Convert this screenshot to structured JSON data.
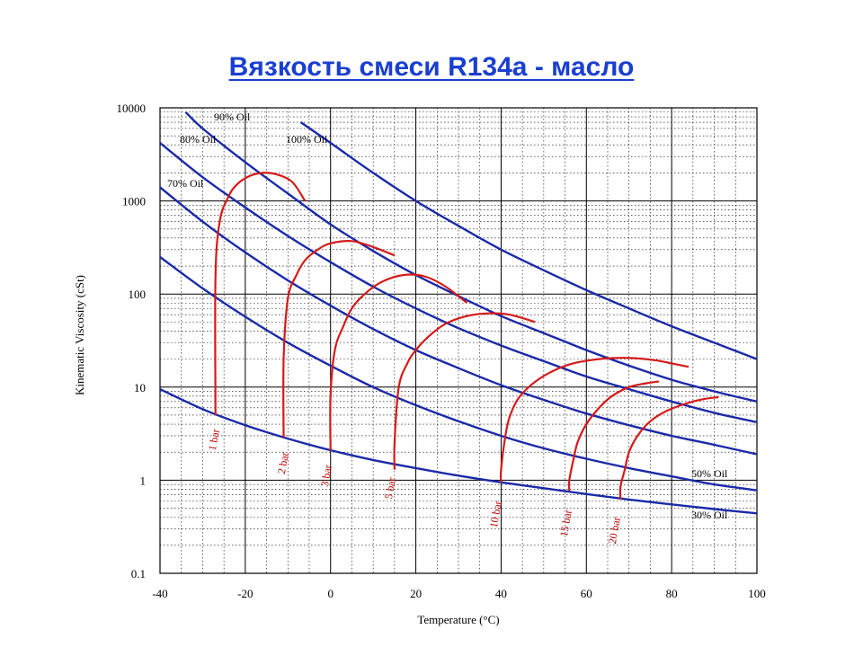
{
  "title": "Вязкость смеси R134a - масло",
  "colors": {
    "oil_curves": "#1a2aa8",
    "pressure_curves": "#d51a1a",
    "title": "#1a3fd0",
    "grid": "#000000"
  },
  "chart_data": {
    "type": "line",
    "title": "Вязкость смеси R134a - масло",
    "xlabel": "Temperature (°C)",
    "ylabel": "Kinematic Viscosity (cSt)",
    "xlim": [
      -40,
      100
    ],
    "ylim": [
      0.1,
      10000
    ],
    "yscale": "log",
    "grid": true,
    "x_ticks": [
      "-40",
      "-20",
      "0",
      "20",
      "40",
      "60",
      "80",
      "100"
    ],
    "y_ticks": [
      "0.1",
      "1",
      "10",
      "100",
      "1000",
      "10000"
    ],
    "oil_series": [
      {
        "name": "100% Oil",
        "x": [
          -7,
          0,
          10,
          20,
          30,
          40,
          50,
          60,
          70,
          80,
          90,
          100
        ],
        "y": [
          7000,
          4200,
          2000,
          1000,
          540,
          300,
          180,
          110,
          70,
          45,
          30,
          20
        ]
      },
      {
        "name": "90% Oil",
        "x": [
          -34,
          -30,
          -20,
          -10,
          0,
          10,
          20,
          30,
          40,
          50,
          60,
          70,
          80,
          90,
          100
        ],
        "y": [
          9000,
          6000,
          2600,
          1200,
          560,
          290,
          160,
          95,
          58,
          38,
          25,
          17,
          12,
          9,
          7
        ]
      },
      {
        "name": "80% Oil",
        "x": [
          -40,
          -30,
          -20,
          -10,
          0,
          10,
          20,
          30,
          40,
          50,
          60,
          70,
          80,
          90,
          100
        ],
        "y": [
          4200,
          1800,
          850,
          420,
          220,
          120,
          70,
          43,
          28,
          19,
          13,
          9.5,
          7,
          5.3,
          4.2
        ]
      },
      {
        "name": "70% Oil",
        "x": [
          -40,
          -30,
          -20,
          -10,
          0,
          10,
          20,
          30,
          40,
          50,
          60,
          70,
          80,
          90,
          100
        ],
        "y": [
          1400,
          600,
          280,
          140,
          75,
          42,
          25,
          16,
          10.5,
          7.3,
          5.2,
          3.9,
          3,
          2.4,
          1.9
        ]
      },
      {
        "name": "50% Oil",
        "x": [
          -40,
          -30,
          -20,
          -10,
          0,
          10,
          20,
          30,
          40,
          50,
          60,
          70,
          80,
          90,
          100
        ],
        "y": [
          250,
          115,
          57,
          30,
          17,
          10,
          6.4,
          4.3,
          3,
          2.2,
          1.7,
          1.35,
          1.1,
          0.9,
          0.78
        ]
      },
      {
        "name": "30% Oil",
        "x": [
          -40,
          -30,
          -20,
          -10,
          0,
          10,
          20,
          30,
          40,
          50,
          60,
          70,
          80,
          90,
          100
        ],
        "y": [
          9.5,
          5.8,
          3.9,
          2.8,
          2.1,
          1.65,
          1.35,
          1.12,
          0.95,
          0.82,
          0.71,
          0.62,
          0.55,
          0.49,
          0.44
        ]
      }
    ],
    "pressure_series": [
      {
        "name": "1 bar",
        "x": [
          -27,
          -27,
          -26,
          -24,
          -22,
          -19,
          -16,
          -13,
          -9,
          -6
        ],
        "y": [
          5,
          150,
          600,
          1100,
          1500,
          1850,
          2000,
          1950,
          1600,
          1000
        ]
      },
      {
        "name": "2 bar",
        "x": [
          -11,
          -11,
          -10,
          -8,
          -6,
          -3,
          0,
          5,
          10,
          15
        ],
        "y": [
          2.9,
          20,
          90,
          160,
          230,
          300,
          350,
          370,
          320,
          260
        ]
      },
      {
        "name": "3 bar",
        "x": [
          0,
          0,
          1,
          3,
          5,
          8,
          12,
          17,
          22,
          27,
          32
        ],
        "y": [
          2.1,
          8,
          25,
          45,
          70,
          100,
          135,
          160,
          155,
          120,
          80
        ]
      },
      {
        "name": "5 bar",
        "x": [
          15,
          15,
          16,
          18,
          20,
          23,
          27,
          32,
          37,
          42,
          48
        ],
        "y": [
          1.3,
          2.5,
          10,
          18,
          25,
          35,
          48,
          58,
          62,
          60,
          50
        ]
      },
      {
        "name": "10 bar",
        "x": [
          40,
          40,
          41,
          42,
          44,
          47,
          51,
          56,
          61,
          66,
          71,
          76,
          80,
          84
        ],
        "y": [
          0.95,
          1.3,
          3,
          4.8,
          7.5,
          10.5,
          14,
          17.5,
          19.5,
          20.5,
          20.5,
          19.5,
          18,
          16.5
        ]
      },
      {
        "name": "15 bar",
        "x": [
          56,
          56,
          57,
          58,
          60,
          63,
          66,
          70,
          74,
          77
        ],
        "y": [
          0.77,
          1,
          1.7,
          2.6,
          4,
          6,
          8,
          10,
          11,
          11.5
        ]
      },
      {
        "name": "20 bar",
        "x": [
          68,
          68,
          69,
          70,
          72,
          75,
          79,
          84,
          88,
          91
        ],
        "y": [
          0.62,
          0.85,
          1.3,
          2,
          3,
          4.3,
          5.6,
          6.8,
          7.5,
          7.8
        ]
      }
    ],
    "oil_labels": [
      "90% Oil",
      "80% Oil",
      "100% Oil",
      "70% Oil",
      "50% Oil",
      "30% Oil"
    ],
    "pressure_labels": [
      "1 bar",
      "2 bar",
      "3 bar",
      "5 bar",
      "10 bar",
      "15 bar",
      "20 bar"
    ]
  }
}
